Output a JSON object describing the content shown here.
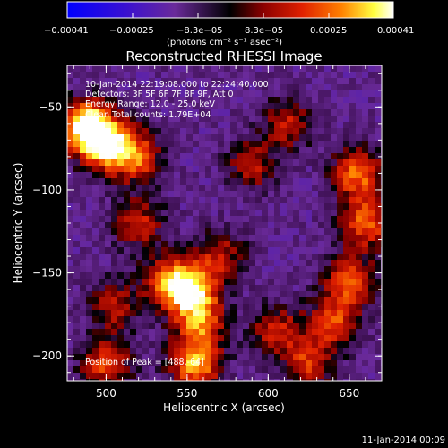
{
  "chart_data": {
    "type": "heatmap",
    "title": "Reconstructed RHESSI Image",
    "xlabel": "Heliocentric X (arcsec)",
    "ylabel": "Heliocentric Y (arcsec)",
    "xlim": [
      476,
      670
    ],
    "ylim": [
      -215,
      -25
    ],
    "x_ticks": [
      {
        "value": 500,
        "label": "500"
      },
      {
        "value": 550,
        "label": "550"
      },
      {
        "value": 600,
        "label": "600"
      },
      {
        "value": 650,
        "label": "650"
      }
    ],
    "y_ticks": [
      {
        "value": -50,
        "label": "−50"
      },
      {
        "value": -100,
        "label": "−100"
      },
      {
        "value": -150,
        "label": "−150"
      },
      {
        "value": -200,
        "label": "−200"
      }
    ],
    "colorbar": {
      "range": [
        -0.00041,
        0.00041
      ],
      "tick_labels": [
        "−0.00041",
        "−0.00025",
        "−8.3e−05",
        "8.3e−05",
        "0.00025",
        "0.00041"
      ],
      "unit_label": "(photons cm⁻² s⁻¹ asec⁻²)",
      "colormap": "blue-purple-black-red-orange-yellow-white"
    },
    "annotations": [
      "10-Jan-2014 22:19:08.000 to 22:24:40.000",
      "Detectors: 3F 5F 6F 7F 8F 9F, Att 0",
      "Energy Range: 12.0 - 25.0 keV",
      "Clean    Total counts: 1.79E+04",
      "Position of Peak = [488,-64]"
    ],
    "peak_position": [
      488,
      -64
    ],
    "bright_sources": [
      {
        "x": 488,
        "y": -62,
        "strength": 0.00041
      },
      {
        "x": 500,
        "y": -72,
        "strength": 0.0003
      },
      {
        "x": 518,
        "y": -80,
        "strength": 0.00022
      },
      {
        "x": 553,
        "y": -161,
        "strength": 0.0003
      },
      {
        "x": 538,
        "y": -155,
        "strength": 0.0002
      },
      {
        "x": 558,
        "y": -180,
        "strength": 0.00018
      },
      {
        "x": 555,
        "y": -205,
        "strength": 0.0003
      },
      {
        "x": 500,
        "y": -205,
        "strength": 0.00018
      },
      {
        "x": 655,
        "y": -90,
        "strength": 0.00024
      },
      {
        "x": 660,
        "y": -120,
        "strength": 0.00022
      },
      {
        "x": 650,
        "y": -155,
        "strength": 0.0002
      },
      {
        "x": 640,
        "y": -180,
        "strength": 0.00018
      },
      {
        "x": 625,
        "y": -205,
        "strength": 0.00015
      },
      {
        "x": 605,
        "y": -185,
        "strength": 0.00014
      },
      {
        "x": 520,
        "y": -120,
        "strength": 0.00013
      },
      {
        "x": 570,
        "y": -140,
        "strength": 0.00012
      },
      {
        "x": 590,
        "y": -85,
        "strength": 0.0001
      },
      {
        "x": 612,
        "y": -60,
        "strength": 0.00012
      },
      {
        "x": 505,
        "y": -170,
        "strength": 0.0001
      }
    ],
    "date_stamp": "11-Jan-2014 00:09"
  },
  "colors": {
    "background": "#000000",
    "text": "#ffffff",
    "colormap_stops": [
      "#0000ff",
      "#5010c0",
      "#6a2a9a",
      "#000000",
      "#8a0000",
      "#e02000",
      "#ff8000",
      "#ffff40",
      "#ffffff"
    ]
  }
}
